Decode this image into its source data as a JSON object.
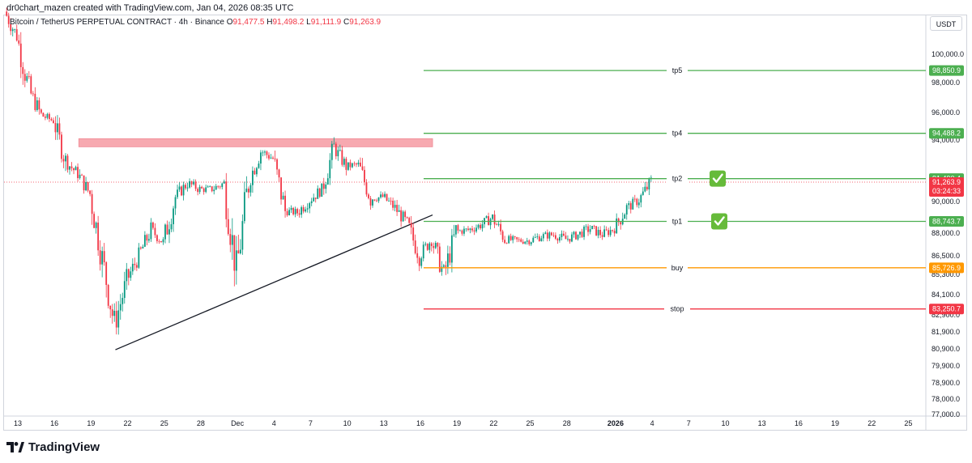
{
  "header": {
    "title": "dr0chart_mazen created with TradingView.com, Jan 04, 2026 08:35 UTC"
  },
  "legend": {
    "symbol": "Bitcoin / TetherUS PERPETUAL CONTRACT · 4h · Binance",
    "o_label": "O",
    "o_value": "91,477.5",
    "h_label": "H",
    "h_value": "91,498.2",
    "l_label": "L",
    "l_value": "91,111.9",
    "c_label": "C",
    "c_value": "91,263.9"
  },
  "currency": "USDT",
  "brand": {
    "name": "TradingView"
  },
  "chart_data": {
    "type": "candlestick",
    "symbol": "BTCUSDT.P",
    "interval": "4h",
    "ylim": [
      77000,
      102500
    ],
    "y_ticks": [
      "100,000.0",
      "98,000.0",
      "96,000.0",
      "94,000.0",
      "90,000.0",
      "88,000.0",
      "86,500.0",
      "85,300.0",
      "84,100.0",
      "82,900.0",
      "81,900.0",
      "80,900.0",
      "79,900.0",
      "78,900.0",
      "78,000.0",
      "77,000.0"
    ],
    "y_tick_values": [
      100000,
      98000,
      96000,
      94000,
      90000,
      88000,
      86500,
      85300,
      84100,
      82900,
      81900,
      80900,
      79900,
      78900,
      78000,
      77000
    ],
    "x_ticks": [
      "13",
      "16",
      "19",
      "22",
      "25",
      "28",
      "Dec",
      "4",
      "7",
      "10",
      "13",
      "16",
      "19",
      "22",
      "25",
      "28",
      "2026",
      "4",
      "7",
      "10",
      "13",
      "16",
      "19",
      "22",
      "25"
    ],
    "x_ticks_bold": [
      "2026"
    ],
    "x_tick_dates": [
      "2025-11-13",
      "2025-11-16",
      "2025-11-19",
      "2025-11-22",
      "2025-11-25",
      "2025-11-28",
      "2025-12-01",
      "2025-12-04",
      "2025-12-07",
      "2025-12-10",
      "2025-12-13",
      "2025-12-16",
      "2025-12-19",
      "2025-12-22",
      "2025-12-25",
      "2025-12-28",
      "2026-01-01",
      "2026-01-04",
      "2026-01-07",
      "2026-01-10",
      "2026-01-13",
      "2026-01-16",
      "2026-01-19",
      "2026-01-22",
      "2026-01-25"
    ],
    "levels": [
      {
        "name": "tp5",
        "value": 98850.9,
        "label": "98,850.9",
        "color": "#4caf50",
        "start": "2025-12-16",
        "checked": false
      },
      {
        "name": "tp4",
        "value": 94488.2,
        "label": "94,488.2",
        "color": "#4caf50",
        "start": "2025-12-16",
        "checked": false
      },
      {
        "name": "tp2",
        "value": 91490.4,
        "label": "91,490.4",
        "color": "#4caf50",
        "start": "2025-12-16",
        "checked": true
      },
      {
        "name": "tp1",
        "value": 88743.7,
        "label": "88,743.7",
        "color": "#4caf50",
        "start": "2025-12-16",
        "checked": true
      },
      {
        "name": "buy",
        "value": 85726.9,
        "label": "85,726.9",
        "color": "#ff9800",
        "start": "2025-12-16",
        "checked": false
      },
      {
        "name": "stop",
        "value": 83250.7,
        "label": "83,250.7",
        "color": "#f23645",
        "start": "2025-12-16",
        "checked": false
      }
    ],
    "last_price": {
      "value": 91263.9,
      "label": "91,263.9",
      "countdown": "03:24:33",
      "color": "#f23645"
    },
    "resistance_zone": {
      "from": "2025-11-18",
      "to": "2025-12-17",
      "low": 93560,
      "high": 94100,
      "color": "#f7a9b0"
    },
    "trendline": {
      "from_date": "2025-11-21",
      "from_price": 80850,
      "to_date": "2025-12-17",
      "to_price": 89150
    },
    "candles_close_path": [
      [
        "2025-11-12",
        102800
      ],
      [
        "2025-11-13",
        101200
      ],
      [
        "2025-11-14",
        97500
      ],
      [
        "2025-11-15",
        95800
      ],
      [
        "2025-11-16",
        95400
      ],
      [
        "2025-11-17",
        92600
      ],
      [
        "2025-11-18",
        91800
      ],
      [
        "2025-11-19",
        90500
      ],
      [
        "2025-11-20",
        86300
      ],
      [
        "2025-11-21",
        82300
      ],
      [
        "2025-11-22",
        84900
      ],
      [
        "2025-11-23",
        86500
      ],
      [
        "2025-11-24",
        88200
      ],
      [
        "2025-11-25",
        87400
      ],
      [
        "2025-11-26",
        90300
      ],
      [
        "2025-11-27",
        91200
      ],
      [
        "2025-11-28",
        90800
      ],
      [
        "2025-11-29",
        90800
      ],
      [
        "2025-11-30",
        91200
      ],
      [
        "2025-12-01",
        85500
      ],
      [
        "2025-12-02",
        91300
      ],
      [
        "2025-12-03",
        93300
      ],
      [
        "2025-12-04",
        92800
      ],
      [
        "2025-12-05",
        89400
      ],
      [
        "2025-12-06",
        89300
      ],
      [
        "2025-12-07",
        90100
      ],
      [
        "2025-12-08",
        90800
      ],
      [
        "2025-12-09",
        93500
      ],
      [
        "2025-12-10",
        92300
      ],
      [
        "2025-12-11",
        92400
      ],
      [
        "2025-12-12",
        90200
      ],
      [
        "2025-12-13",
        90300
      ],
      [
        "2025-12-14",
        89600
      ],
      [
        "2025-12-15",
        88600
      ],
      [
        "2025-12-16",
        86500
      ],
      [
        "2025-12-17",
        87600
      ],
      [
        "2025-12-18",
        85300
      ],
      [
        "2025-12-19",
        88100
      ],
      [
        "2025-12-20",
        88200
      ],
      [
        "2025-12-21",
        88500
      ],
      [
        "2025-12-22",
        89000
      ],
      [
        "2025-12-23",
        87600
      ],
      [
        "2025-12-24",
        87500
      ],
      [
        "2025-12-25",
        87500
      ],
      [
        "2025-12-26",
        87800
      ],
      [
        "2025-12-27",
        87900
      ],
      [
        "2025-12-28",
        87600
      ],
      [
        "2025-12-29",
        87900
      ],
      [
        "2025-12-30",
        88300
      ],
      [
        "2025-12-31",
        87900
      ],
      [
        "2026-01-01",
        88300
      ],
      [
        "2026-01-02",
        89600
      ],
      [
        "2026-01-03",
        90100
      ],
      [
        "2026-01-04",
        91300
      ]
    ]
  }
}
